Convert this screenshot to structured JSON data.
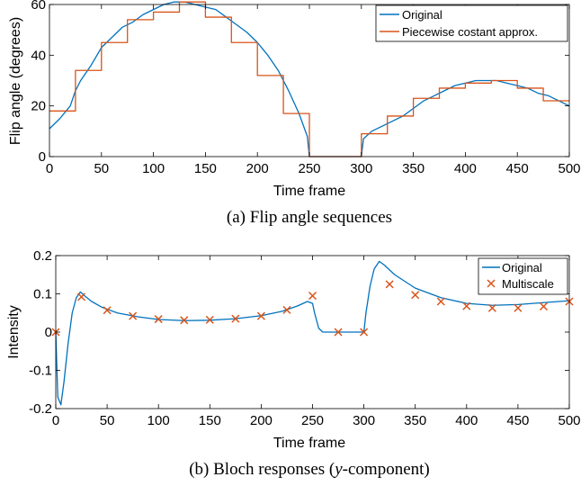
{
  "chart_data": [
    {
      "type": "line",
      "caption": "(a) Flip angle sequences",
      "xlabel": "Time frame",
      "ylabel": "Flip angle (degrees)",
      "xlim": [
        0,
        500
      ],
      "ylim": [
        0,
        60
      ],
      "xticks": [
        "0",
        "50",
        "100",
        "150",
        "200",
        "250",
        "300",
        "350",
        "400",
        "450",
        "500"
      ],
      "yticks": [
        "0",
        "20",
        "40",
        "60"
      ],
      "grid": false,
      "legend_position": "top-right",
      "series": [
        {
          "name": "Original",
          "color": "#0072BD",
          "x": [
            0,
            10,
            20,
            25,
            30,
            40,
            50,
            60,
            70,
            80,
            90,
            100,
            110,
            120,
            130,
            140,
            150,
            160,
            170,
            180,
            190,
            200,
            210,
            220,
            230,
            240,
            248,
            250,
            300,
            302,
            310,
            320,
            330,
            340,
            350,
            360,
            370,
            380,
            390,
            400,
            410,
            420,
            430,
            440,
            450,
            460,
            470,
            480,
            490,
            500
          ],
          "y": [
            11,
            15,
            20,
            26,
            30,
            36,
            43,
            47,
            51,
            53,
            56,
            58,
            60,
            61,
            61,
            60,
            59,
            58,
            55,
            52,
            49,
            45,
            40,
            34,
            26,
            17,
            8,
            0,
            0,
            7,
            10,
            12,
            14,
            16,
            19,
            22,
            24,
            26,
            28,
            29,
            30,
            30,
            30,
            29,
            28,
            27,
            25,
            24,
            22,
            20
          ]
        },
        {
          "name": "Piecewise costant approx.",
          "color": "#D95319",
          "x": [
            0,
            25,
            25,
            50,
            50,
            75,
            75,
            100,
            100,
            125,
            125,
            150,
            150,
            175,
            175,
            200,
            200,
            225,
            225,
            250,
            250,
            300,
            300,
            325,
            325,
            350,
            350,
            375,
            375,
            400,
            400,
            425,
            425,
            450,
            450,
            475,
            475,
            500
          ],
          "y": [
            18,
            18,
            34,
            34,
            45,
            45,
            54,
            54,
            57,
            57,
            61,
            61,
            55,
            55,
            45,
            45,
            32,
            32,
            17,
            17,
            0,
            0,
            9,
            9,
            16,
            16,
            23,
            23,
            27,
            27,
            29,
            29,
            30,
            30,
            27,
            27,
            22,
            22
          ]
        }
      ]
    },
    {
      "type": "line",
      "caption_pre": "(b) Bloch responses (",
      "caption_var": "y",
      "caption_post": "-component)",
      "xlabel": "Time frame",
      "ylabel": "Intensity",
      "xlim": [
        0,
        500
      ],
      "ylim": [
        -0.2,
        0.2
      ],
      "xticks": [
        "0",
        "50",
        "100",
        "150",
        "200",
        "250",
        "300",
        "350",
        "400",
        "450",
        "500"
      ],
      "yticks": [
        "-0.2",
        "-0.1",
        "0",
        "0.1",
        "0.2"
      ],
      "grid": false,
      "legend_position": "top-right",
      "series": [
        {
          "name": "Original",
          "color": "#0072BD",
          "style": "line",
          "x": [
            0,
            2,
            5,
            8,
            12,
            16,
            20,
            24,
            28,
            35,
            45,
            60,
            80,
            100,
            125,
            150,
            175,
            200,
            220,
            235,
            245,
            250,
            252,
            256,
            260,
            300,
            302,
            306,
            310,
            315,
            320,
            330,
            350,
            375,
            400,
            425,
            450,
            475,
            500
          ],
          "y": [
            0,
            -0.17,
            -0.19,
            -0.13,
            -0.03,
            0.05,
            0.09,
            0.105,
            0.095,
            0.08,
            0.065,
            0.05,
            0.04,
            0.033,
            0.03,
            0.031,
            0.035,
            0.043,
            0.054,
            0.068,
            0.08,
            0.075,
            0.05,
            0.01,
            0,
            0,
            0.05,
            0.12,
            0.165,
            0.185,
            0.175,
            0.15,
            0.115,
            0.09,
            0.075,
            0.07,
            0.072,
            0.077,
            0.082
          ]
        },
        {
          "name": "Multiscale",
          "color": "#D95319",
          "style": "marker-x",
          "x": [
            0,
            25,
            50,
            75,
            100,
            125,
            150,
            175,
            200,
            225,
            250,
            275,
            300,
            325,
            350,
            375,
            400,
            425,
            450,
            475,
            500
          ],
          "y": [
            0,
            0.092,
            0.057,
            0.042,
            0.034,
            0.031,
            0.032,
            0.035,
            0.042,
            0.058,
            0.095,
            0,
            0,
            0.125,
            0.097,
            0.08,
            0.068,
            0.063,
            0.063,
            0.067,
            0.08
          ]
        }
      ]
    }
  ]
}
